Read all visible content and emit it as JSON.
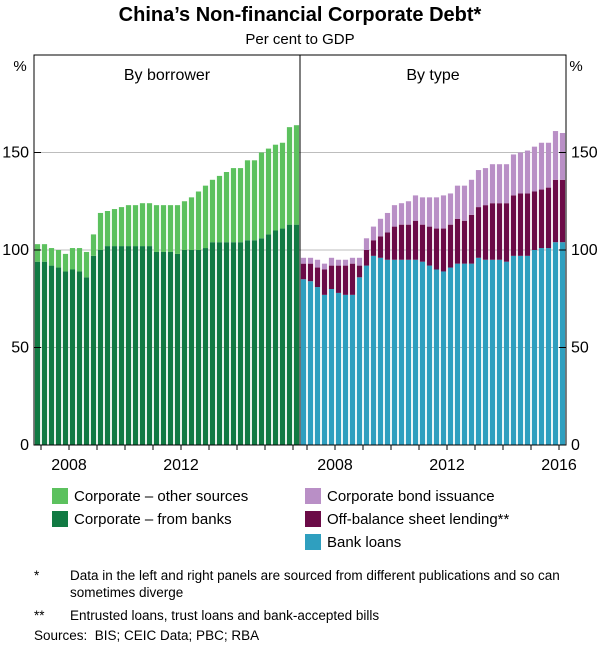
{
  "chart_data": {
    "type": "bar",
    "title": "China’s Non-financial Corporate Debt*",
    "subtitle": "Per cent to GDP",
    "y_unit": "%",
    "ylim": [
      0,
      200
    ],
    "y_ticks": [
      0,
      50,
      100,
      150
    ],
    "grid": true,
    "legend_position": "bottom",
    "x_range": [
      2006.75,
      2016.25
    ],
    "x_ticks": [
      2008,
      2012,
      2016
    ],
    "left_x_tick_labels": [
      "2008",
      "2012"
    ],
    "right_x_tick_labels": [
      "2008",
      "2012",
      "2016"
    ],
    "quarters": [
      "2006Q4",
      "2007Q1",
      "2007Q2",
      "2007Q3",
      "2007Q4",
      "2008Q1",
      "2008Q2",
      "2008Q3",
      "2008Q4",
      "2009Q1",
      "2009Q2",
      "2009Q3",
      "2009Q4",
      "2010Q1",
      "2010Q2",
      "2010Q3",
      "2010Q4",
      "2011Q1",
      "2011Q2",
      "2011Q3",
      "2011Q4",
      "2012Q1",
      "2012Q2",
      "2012Q3",
      "2012Q4",
      "2013Q1",
      "2013Q2",
      "2013Q3",
      "2013Q4",
      "2014Q1",
      "2014Q2",
      "2014Q3",
      "2014Q4",
      "2015Q1",
      "2015Q2",
      "2015Q3",
      "2015Q4",
      "2016Q1"
    ],
    "panels": [
      {
        "title": "By borrower",
        "series": [
          {
            "name": "Corporate – from banks",
            "color": "#117a43",
            "values": [
              94,
              94,
              92,
              91,
              89,
              90,
              89,
              86,
              97,
              100,
              102,
              102,
              102,
              102,
              102,
              102,
              102,
              99,
              99,
              99,
              98,
              100,
              100,
              100,
              101,
              104,
              104,
              104,
              104,
              104,
              105,
              105,
              106,
              108,
              110,
              111,
              113,
              113
            ]
          },
          {
            "name": "Corporate – other sources",
            "color": "#5cc15e",
            "values": [
              9,
              9,
              9,
              9,
              9,
              11,
              12,
              13,
              11,
              19,
              18,
              19,
              20,
              21,
              21,
              22,
              22,
              24,
              24,
              24,
              25,
              25,
              27,
              30,
              32,
              32,
              34,
              36,
              38,
              38,
              41,
              41,
              44,
              44,
              44,
              44,
              50,
              51
            ]
          }
        ]
      },
      {
        "title": "By type",
        "series": [
          {
            "name": "Bank loans",
            "color": "#2f9fbf",
            "values": [
              85,
              84,
              81,
              77,
              80,
              78,
              77,
              77,
              86,
              92,
              97,
              96,
              95,
              95,
              95,
              95,
              95,
              94,
              92,
              90,
              89,
              91,
              93,
              93,
              93,
              96,
              95,
              95,
              95,
              94,
              97,
              97,
              97,
              100,
              101,
              101,
              104,
              104
            ]
          },
          {
            "name": "Off-balance sheet lending**",
            "color": "#6b0b47",
            "values": [
              8,
              9,
              10,
              13,
              12,
              14,
              15,
              16,
              6,
              8,
              8,
              11,
              14,
              17,
              18,
              18,
              20,
              19,
              20,
              21,
              22,
              22,
              23,
              22,
              25,
              26,
              28,
              29,
              29,
              30,
              31,
              32,
              32,
              30,
              30,
              31,
              32,
              32
            ]
          },
          {
            "name": "Corporate bond issuance",
            "color": "#b98fc6",
            "values": [
              3,
              3,
              4,
              3,
              4,
              3,
              3,
              3,
              4,
              6,
              7,
              9,
              10,
              11,
              11,
              12,
              13,
              14,
              15,
              16,
              17,
              16,
              17,
              18,
              18,
              19,
              19,
              20,
              20,
              20,
              21,
              21,
              22,
              23,
              24,
              23,
              25,
              24
            ]
          }
        ]
      }
    ]
  },
  "legend": {
    "left": [
      {
        "label": "Corporate – other sources",
        "color": "#5cc15e"
      },
      {
        "label": "Corporate – from banks",
        "color": "#117a43"
      }
    ],
    "right": [
      {
        "label": "Corporate bond issuance",
        "color": "#b98fc6"
      },
      {
        "label": "Off-balance sheet lending**",
        "color": "#6b0b47"
      },
      {
        "label": "Bank loans",
        "color": "#2f9fbf"
      }
    ]
  },
  "notes": [
    {
      "mark": "*",
      "text": "Data in the left and right panels are sourced from different publications and so can sometimes diverge"
    },
    {
      "mark": "**",
      "text": "Entrusted loans, trust loans and bank-accepted bills"
    }
  ],
  "sources": "Sources:  BIS; CEIC Data; PBC; RBA"
}
